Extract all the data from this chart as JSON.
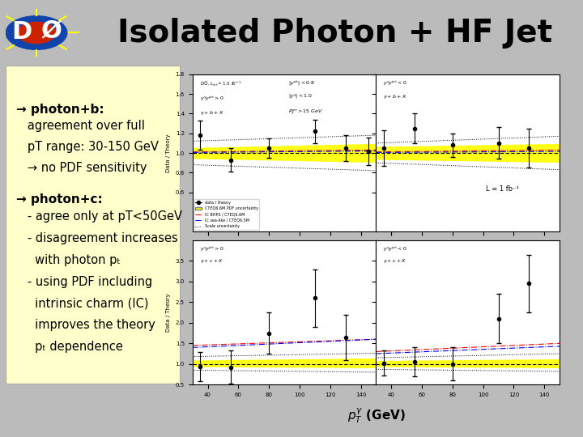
{
  "title": "Isolated Photon + HF Jet",
  "title_fontsize": 28,
  "title_box_color": "#FFFF00",
  "bg_color": "#FFFFFF",
  "slide_bg": "#DDDDDD",
  "left_box_color": "#FFFFCC",
  "left_box_border": "#CCCC99",
  "bullet1_header": "→ photon+b:",
  "bullet1_lines": [
    "   agreement over full",
    "   pT range: 30-150 GeV",
    "   → no PDF sensitivity"
  ],
  "bullet2_header": "→ photon+c:",
  "bullet2_lines": [
    "   - agree only at pT<50GeV",
    "   - disagreement increases",
    "     with photon pₜ",
    "   - using PDF including",
    "     intrinsic charm (IC)",
    "     improves the theory",
    "     pₜ dependence"
  ],
  "luminosity_label": "L = 1 fb⁻¹",
  "xlabel": "pₜᶞ(GeV)",
  "plot_image_placeholder": true,
  "logo_text": "DØ",
  "logo_color": "#003399",
  "font_size_text": 11
}
